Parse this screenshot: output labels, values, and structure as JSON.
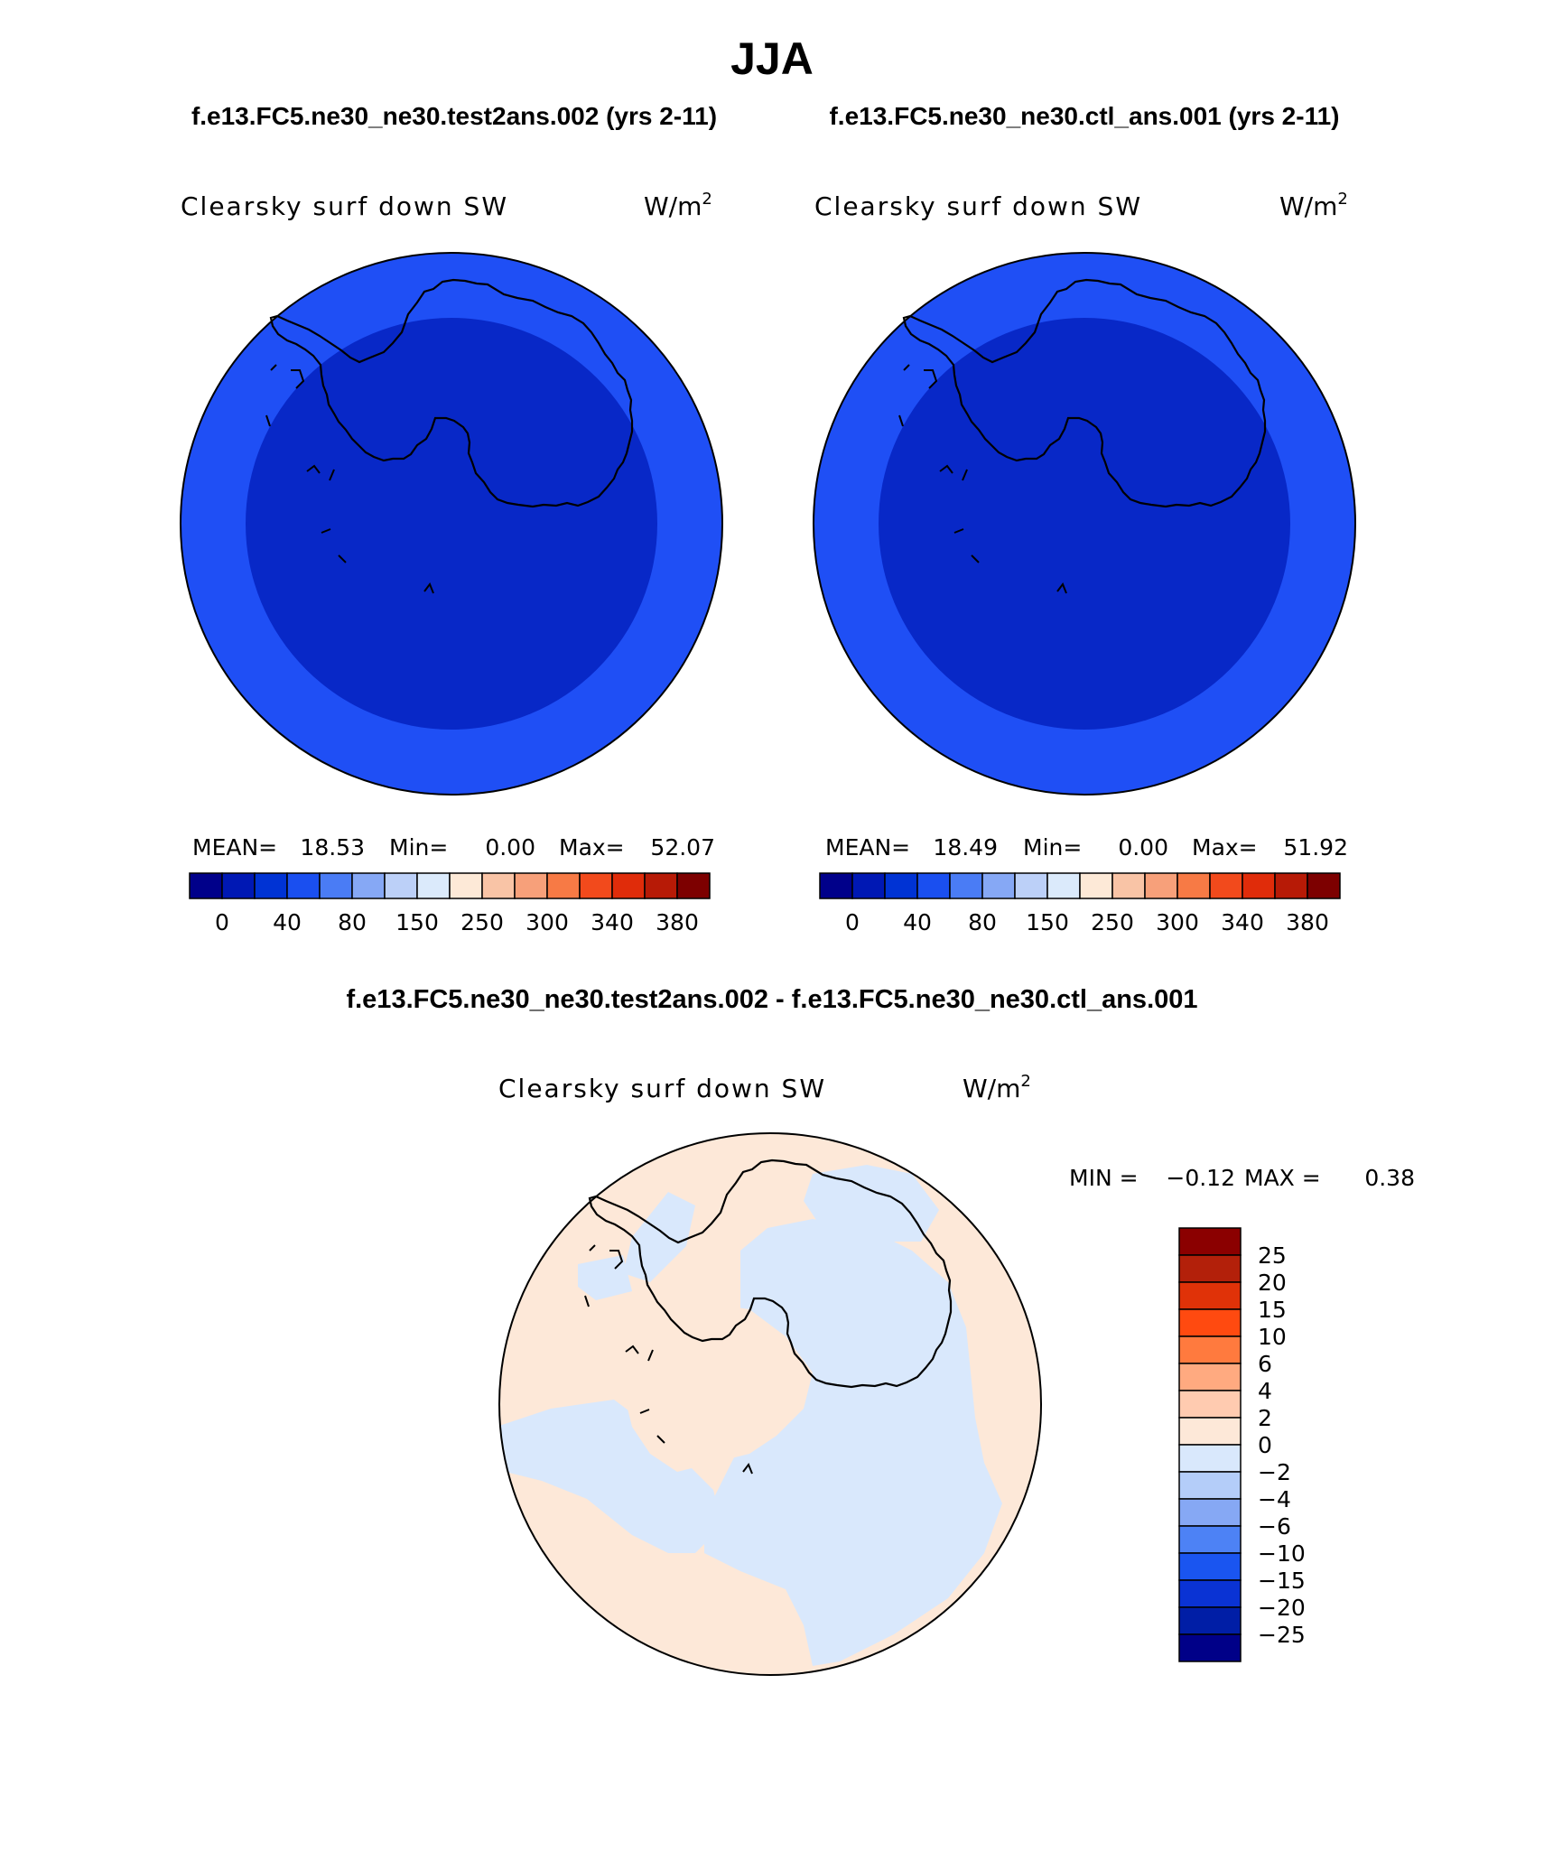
{
  "season": "JJA",
  "titles": {
    "left": "f.e13.FC5.ne30_ne30.test2ans.002 (yrs 2-11)",
    "right": "f.e13.FC5.ne30_ne30.ctl_ans.001 (yrs 2-11)",
    "diff": "f.e13.FC5.ne30_ne30.test2ans.002 - f.e13.FC5.ne30_ne30.ctl_ans.001"
  },
  "variable": "Clearsky surf down SW",
  "units": "W/m",
  "units_exp": "2",
  "panels": [
    {
      "mean_label": "MEAN=",
      "mean": "18.53",
      "min_label": "Min=",
      "min": "0.00",
      "max_label": "Max=",
      "max": "52.07"
    },
    {
      "mean_label": "MEAN=",
      "mean": "18.49",
      "min_label": "Min=",
      "min": "0.00",
      "max_label": "Max=",
      "max": "51.92"
    }
  ],
  "diff_stats": {
    "min_label": "MIN =",
    "min": "−0.12",
    "max_label": "MAX =",
    "max": "0.38"
  },
  "abs_colorbar": {
    "colors": [
      "#00008a",
      "#0018b4",
      "#0033d4",
      "#1a4ff0",
      "#4a7cf5",
      "#86a8f5",
      "#bcd0f8",
      "#dbeafb",
      "#fde9d7",
      "#f9c4a6",
      "#f7a07a",
      "#f77a45",
      "#f24a1c",
      "#e02c0a",
      "#b71a06",
      "#7d0000"
    ],
    "ticks": [
      "0",
      "40",
      "80",
      "150",
      "250",
      "300",
      "340",
      "380"
    ]
  },
  "diff_colorbar": {
    "colors": [
      "#8b0000",
      "#b3200a",
      "#e03208",
      "#ff4a10",
      "#ff7a3e",
      "#ffaa80",
      "#ffcbb0",
      "#fde8d8",
      "#d9e8fc",
      "#b4cdf9",
      "#86a8f4",
      "#4d82f5",
      "#1a55f0",
      "#0a33d4",
      "#001ea6",
      "#000088"
    ],
    "ticks": [
      "25",
      "20",
      "15",
      "10",
      "6",
      "4",
      "2",
      "0",
      "−2",
      "−4",
      "−6",
      "−10",
      "−15",
      "−20",
      "−25"
    ]
  },
  "colors": {
    "abs_outer": "#1f4ff5",
    "abs_inner": "#0828c7",
    "diff_positive": "#fde8d8",
    "diff_negative": "#d9e8fc"
  }
}
